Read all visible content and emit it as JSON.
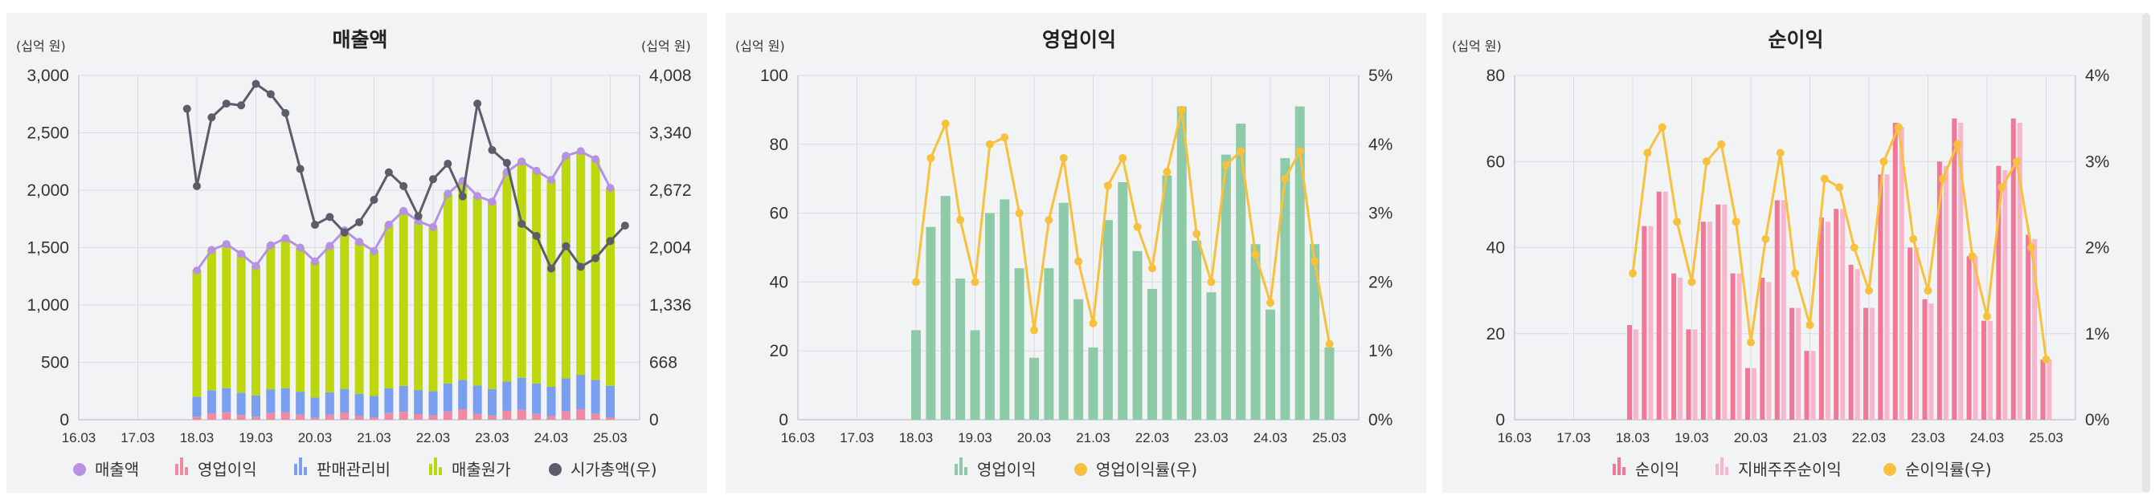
{
  "chart_data": [
    {
      "type": "bar",
      "title": "매출액",
      "y_left_unit": "(십억 원)",
      "y_right_unit": "(십억 원)",
      "ylim_left": [
        0,
        3000
      ],
      "ylim_right": [
        0,
        4008
      ],
      "y_left_ticks": [
        "0",
        "500",
        "1,000",
        "1,500",
        "2,000",
        "2,500",
        "3,000"
      ],
      "y_right_ticks": [
        "0",
        "668",
        "1,336",
        "2,004",
        "2,672",
        "3,340",
        "4,008"
      ],
      "x_tick_labels": [
        "16.03",
        "17.03",
        "18.03",
        "19.03",
        "20.03",
        "21.03",
        "22.03",
        "23.03",
        "24.03",
        "25.03"
      ],
      "legend_position": "bottom",
      "legend": [
        "매출액",
        "영업이익",
        "판매관리비",
        "매출원가",
        "시가총액(우)"
      ],
      "colors": {
        "revenue": "#b692e6",
        "op_profit": "#f08aa2",
        "sga": "#7b9ff0",
        "cogs": "#bcd70e",
        "mcap": "#5b5d6b"
      },
      "x": [
        "18.03",
        "18.06",
        "18.09",
        "18.12",
        "19.03",
        "19.06",
        "19.09",
        "19.12",
        "20.03",
        "20.06",
        "20.09",
        "20.12",
        "21.03",
        "21.06",
        "21.09",
        "21.12",
        "22.03",
        "22.06",
        "22.09",
        "22.12",
        "23.03",
        "23.06",
        "23.09",
        "23.12",
        "24.03",
        "24.06",
        "24.09",
        "24.12",
        "25.03"
      ],
      "stacks": {
        "op_profit": [
          26,
          56,
          65,
          41,
          26,
          60,
          64,
          44,
          18,
          44,
          63,
          35,
          21,
          58,
          69,
          49,
          38,
          71,
          91,
          52,
          37,
          77,
          86,
          51,
          32,
          76,
          91,
          51,
          21
        ],
        "sga": [
          175,
          200,
          210,
          195,
          185,
          205,
          210,
          200,
          175,
          195,
          205,
          190,
          185,
          215,
          225,
          210,
          210,
          245,
          255,
          245,
          230,
          255,
          280,
          265,
          255,
          285,
          300,
          295,
          275
        ],
        "cogs": [
          1099,
          1224,
          1255,
          1209,
          1129,
          1255,
          1306,
          1256,
          1187,
          1276,
          1382,
          1325,
          1264,
          1427,
          1526,
          1471,
          1432,
          1654,
          1734,
          1653,
          1633,
          1828,
          1884,
          1854,
          1803,
          1939,
          1949,
          1924,
          1724
        ]
      },
      "revenue": [
        1300,
        1480,
        1530,
        1445,
        1340,
        1520,
        1580,
        1500,
        1380,
        1515,
        1650,
        1550,
        1470,
        1700,
        1820,
        1730,
        1680,
        1970,
        2080,
        1950,
        1900,
        2160,
        2250,
        2170,
        2090,
        2300,
        2340,
        2270,
        2020
      ],
      "mcap_x": [
        "18.01",
        "18.03",
        "18.06",
        "18.09",
        "18.12",
        "19.03",
        "19.06",
        "19.09",
        "19.12",
        "20.03",
        "20.06",
        "20.09",
        "20.12",
        "21.03",
        "21.06",
        "21.09",
        "21.12",
        "22.03",
        "22.06",
        "22.09",
        "22.12",
        "23.03",
        "23.06",
        "23.09",
        "23.12",
        "24.03",
        "24.06",
        "24.09",
        "24.12",
        "25.03",
        "25.06"
      ],
      "mcap": [
        3620,
        2720,
        3520,
        3680,
        3660,
        3910,
        3790,
        3570,
        2920,
        2270,
        2360,
        2180,
        2300,
        2560,
        2880,
        2720,
        2370,
        2800,
        2980,
        2600,
        3680,
        3140,
        2990,
        2280,
        2140,
        1760,
        2020,
        1780,
        1880,
        2080,
        2260
      ]
    },
    {
      "type": "bar",
      "title": "영업이익",
      "y_left_unit": "(십억 원)",
      "ylim_left": [
        0,
        100
      ],
      "ylim_right": [
        0,
        5
      ],
      "y_left_ticks": [
        "0",
        "20",
        "40",
        "60",
        "80",
        "100"
      ],
      "y_right_ticks": [
        "0%",
        "1%",
        "2%",
        "3%",
        "4%",
        "5%"
      ],
      "x_tick_labels": [
        "16.03",
        "17.03",
        "18.03",
        "19.03",
        "20.03",
        "21.03",
        "22.03",
        "23.03",
        "24.03",
        "25.03"
      ],
      "legend_position": "bottom",
      "legend": [
        "영업이익",
        "영업이익률(우)"
      ],
      "colors": {
        "bar": "#8ccaa8",
        "line": "#f7c13d"
      },
      "x": [
        "18.03",
        "18.06",
        "18.09",
        "18.12",
        "19.03",
        "19.06",
        "19.09",
        "19.12",
        "20.03",
        "20.06",
        "20.09",
        "20.12",
        "21.03",
        "21.06",
        "21.09",
        "21.12",
        "22.03",
        "22.06",
        "22.09",
        "22.12",
        "23.03",
        "23.06",
        "23.09",
        "23.12",
        "24.03",
        "24.06",
        "24.09",
        "24.12",
        "25.03"
      ],
      "values": [
        26,
        56,
        65,
        41,
        26,
        60,
        64,
        44,
        18,
        44,
        63,
        35,
        21,
        58,
        69,
        49,
        38,
        71,
        91,
        52,
        37,
        77,
        86,
        51,
        32,
        76,
        91,
        51,
        21
      ],
      "margin_pct": [
        2.0,
        3.8,
        4.3,
        2.9,
        2.0,
        4.0,
        4.1,
        3.0,
        1.3,
        2.9,
        3.8,
        2.3,
        1.4,
        3.4,
        3.8,
        2.8,
        2.2,
        3.6,
        4.5,
        2.7,
        2.0,
        3.7,
        3.9,
        2.4,
        1.7,
        3.5,
        3.9,
        2.3,
        1.1
      ]
    },
    {
      "type": "bar",
      "title": "순이익",
      "y_left_unit": "(십억 원)",
      "ylim_left": [
        0,
        80
      ],
      "ylim_right": [
        0,
        4
      ],
      "y_left_ticks": [
        "0",
        "20",
        "40",
        "60",
        "80"
      ],
      "y_right_ticks": [
        "0%",
        "1%",
        "2%",
        "3%",
        "4%"
      ],
      "x_tick_labels": [
        "16.03",
        "17.03",
        "18.03",
        "19.03",
        "20.03",
        "21.03",
        "22.03",
        "23.03",
        "24.03",
        "25.03"
      ],
      "legend_position": "bottom",
      "legend": [
        "순이익",
        "지배주주순이익",
        "순이익률(우)"
      ],
      "colors": {
        "net": "#f07896",
        "parent": "#f7b6cc",
        "line": "#f7c13d"
      },
      "x": [
        "18.03",
        "18.06",
        "18.09",
        "18.12",
        "19.03",
        "19.06",
        "19.09",
        "19.12",
        "20.03",
        "20.06",
        "20.09",
        "20.12",
        "21.03",
        "21.06",
        "21.09",
        "21.12",
        "22.03",
        "22.06",
        "22.09",
        "22.12",
        "23.03",
        "23.06",
        "23.09",
        "23.12",
        "24.03",
        "24.06",
        "24.09",
        "24.12",
        "25.03"
      ],
      "net_income": [
        22,
        45,
        53,
        34,
        21,
        46,
        50,
        34,
        12,
        33,
        51,
        26,
        16,
        47,
        49,
        36,
        26,
        57,
        69,
        40,
        28,
        60,
        70,
        38,
        23,
        59,
        70,
        43,
        14
      ],
      "parent_income": [
        21,
        45,
        53,
        33,
        21,
        46,
        50,
        34,
        12,
        32,
        51,
        26,
        16,
        46,
        49,
        35,
        26,
        57,
        68,
        40,
        27,
        59,
        69,
        38,
        23,
        58,
        69,
        42,
        14
      ],
      "margin_pct": [
        1.7,
        3.1,
        3.4,
        2.3,
        1.6,
        3.0,
        3.2,
        2.3,
        0.9,
        2.1,
        3.1,
        1.7,
        1.1,
        2.8,
        2.7,
        2.0,
        1.5,
        3.0,
        3.4,
        2.1,
        1.5,
        2.8,
        3.2,
        1.9,
        1.2,
        2.7,
        3.0,
        2.0,
        0.7
      ]
    }
  ]
}
